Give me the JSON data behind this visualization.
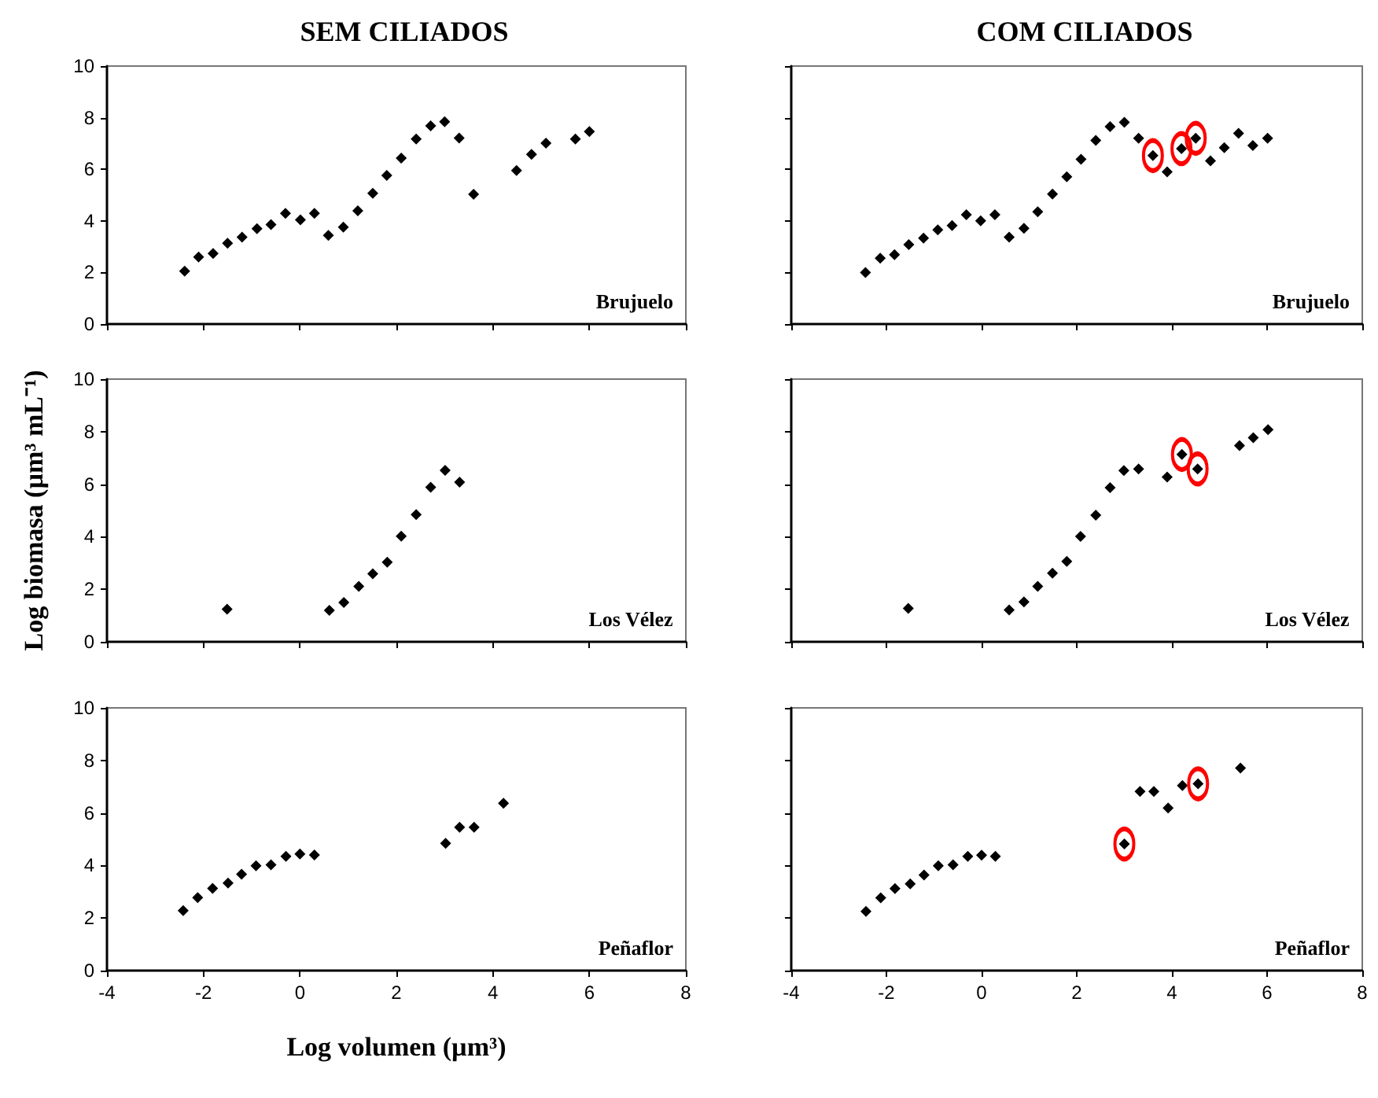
{
  "chart_data": [
    {
      "type": "scatter",
      "title": "SEM CILIADOS",
      "annotations": [
        "Brujuelo"
      ],
      "xlim": [
        -4,
        8
      ],
      "xticks": [
        -4,
        -2,
        0,
        2,
        4,
        6,
        8
      ],
      "ylim": [
        0,
        10
      ],
      "yticks": [
        0,
        2,
        4,
        6,
        8,
        10
      ],
      "tick_labels": "y",
      "marker": "diamond",
      "series": [
        {
          "color": "#000000",
          "x": [
            -2.39,
            -2.1,
            -1.8,
            -1.5,
            -1.2,
            -0.89,
            -0.6,
            -0.3,
            0.01,
            0.3,
            0.59,
            0.9,
            1.2,
            1.51,
            1.8,
            2.1,
            2.41,
            2.71,
            3.0,
            3.3,
            3.6,
            4.49,
            4.8,
            5.1,
            5.71,
            6.0
          ],
          "values": [
            2.05,
            2.6,
            2.74,
            3.13,
            3.37,
            3.7,
            3.86,
            4.29,
            4.04,
            4.29,
            3.44,
            3.76,
            4.39,
            5.07,
            5.76,
            6.43,
            7.17,
            7.68,
            7.84,
            7.21,
            5.03,
            5.95,
            6.58,
            7.01,
            7.17,
            7.46
          ]
        }
      ]
    },
    {
      "type": "scatter",
      "title": "COM CILIADOS",
      "annotations": [
        "Brujuelo"
      ],
      "xlim": [
        -4,
        8
      ],
      "xticks": [
        -4,
        -2,
        0,
        2,
        4,
        6,
        8
      ],
      "ylim": [
        0,
        10
      ],
      "yticks": [
        0,
        2,
        4,
        6,
        8,
        10
      ],
      "tick_labels": false,
      "marker": "diamond",
      "series": [
        {
          "color": "#000000",
          "x": [
            -2.44,
            -2.13,
            -1.83,
            -1.53,
            -1.22,
            -0.92,
            -0.62,
            -0.32,
            -0.02,
            0.28,
            0.58,
            0.89,
            1.18,
            1.49,
            1.79,
            2.09,
            2.4,
            2.7,
            3.0,
            3.3,
            3.6,
            3.9,
            4.2,
            4.5,
            4.81,
            5.1,
            5.4,
            5.7,
            6.01
          ],
          "values": [
            2.0,
            2.55,
            2.69,
            3.08,
            3.33,
            3.65,
            3.82,
            4.24,
            4.0,
            4.24,
            3.37,
            3.71,
            4.35,
            5.04,
            5.71,
            6.39,
            7.12,
            7.65,
            7.82,
            7.2,
            6.53,
            5.9,
            6.8,
            7.2,
            6.33,
            6.84,
            7.39,
            6.92,
            7.2
          ]
        },
        {
          "color": "#ff0000",
          "marker": "circle",
          "x": [
            3.6,
            4.2,
            4.5
          ],
          "values": [
            6.53,
            6.8,
            7.2
          ]
        }
      ]
    },
    {
      "type": "scatter",
      "ylabel": "Log biomasa (µm³ mL⁻¹)",
      "annotations": [
        "Los Vélez"
      ],
      "xlim": [
        -4,
        8
      ],
      "xticks": [
        -4,
        -2,
        0,
        2,
        4,
        6,
        8
      ],
      "ylim": [
        0,
        10
      ],
      "yticks": [
        0,
        2,
        4,
        6,
        8,
        10
      ],
      "tick_labels": "y",
      "marker": "diamond",
      "series": [
        {
          "color": "#000000",
          "x": [
            -1.51,
            0.61,
            0.91,
            1.22,
            1.51,
            1.81,
            2.1,
            2.41,
            2.71,
            3.01,
            3.31
          ],
          "values": [
            1.24,
            1.2,
            1.5,
            2.11,
            2.59,
            3.03,
            4.02,
            4.84,
            5.88,
            6.53,
            6.08
          ]
        }
      ]
    },
    {
      "type": "scatter",
      "annotations": [
        "Los Vélez"
      ],
      "xlim": [
        -4,
        8
      ],
      "xticks": [
        -4,
        -2,
        0,
        2,
        4,
        6,
        8
      ],
      "ylim": [
        0,
        10
      ],
      "yticks": [
        0,
        2,
        4,
        6,
        8,
        10
      ],
      "tick_labels": false,
      "marker": "diamond",
      "series": [
        {
          "color": "#000000",
          "x": [
            -1.54,
            0.58,
            0.89,
            1.18,
            1.49,
            1.79,
            2.08,
            2.4,
            2.7,
            2.99,
            3.3,
            3.9,
            4.21,
            4.54,
            5.42,
            5.71,
            6.02
          ],
          "values": [
            1.27,
            1.21,
            1.52,
            2.11,
            2.61,
            3.06,
            4.01,
            4.82,
            5.87,
            6.52,
            6.58,
            6.27,
            7.13,
            6.58,
            7.47,
            7.77,
            8.08
          ]
        },
        {
          "color": "#ff0000",
          "marker": "circle",
          "x": [
            4.21,
            4.54
          ],
          "values": [
            7.13,
            6.58
          ]
        }
      ]
    },
    {
      "type": "scatter",
      "xlabel": "Log volumen (µm³)",
      "annotations": [
        "Peñaflor"
      ],
      "xlim": [
        -4,
        8
      ],
      "xticks": [
        -4,
        -2,
        0,
        2,
        4,
        6,
        8
      ],
      "ylim": [
        0,
        10
      ],
      "yticks": [
        0,
        2,
        4,
        6,
        8,
        10
      ],
      "marker": "diamond",
      "series": [
        {
          "color": "#000000",
          "x": [
            -2.42,
            -2.12,
            -1.81,
            -1.49,
            -1.21,
            -0.91,
            -0.6,
            -0.29,
            0.0,
            0.3,
            3.02,
            3.31,
            3.61,
            4.22
          ],
          "values": [
            2.28,
            2.78,
            3.13,
            3.33,
            3.67,
            3.99,
            4.03,
            4.35,
            4.44,
            4.4,
            4.84,
            5.46,
            5.46,
            6.37
          ]
        }
      ]
    },
    {
      "type": "scatter",
      "annotations": [
        "Peñaflor"
      ],
      "xlim": [
        -4,
        8
      ],
      "xticks": [
        -4,
        -2,
        0,
        2,
        4,
        6,
        8
      ],
      "ylim": [
        0,
        10
      ],
      "yticks": [
        0,
        2,
        4,
        6,
        8,
        10
      ],
      "tick_labels": "x",
      "marker": "diamond",
      "series": [
        {
          "color": "#000000",
          "x": [
            -2.43,
            -2.12,
            -1.82,
            -1.5,
            -1.21,
            -0.91,
            -0.6,
            -0.29,
            0.0,
            0.29,
            3.0,
            3.33,
            3.62,
            3.92,
            4.22,
            4.55,
            5.44
          ],
          "values": [
            2.25,
            2.77,
            3.12,
            3.3,
            3.64,
            3.99,
            4.03,
            4.35,
            4.39,
            4.35,
            4.82,
            6.82,
            6.82,
            6.19,
            7.04,
            7.11,
            7.71
          ]
        },
        {
          "color": "#ff0000",
          "marker": "circle",
          "x": [
            3.0,
            4.55
          ],
          "values": [
            4.82,
            7.11
          ]
        }
      ]
    }
  ]
}
